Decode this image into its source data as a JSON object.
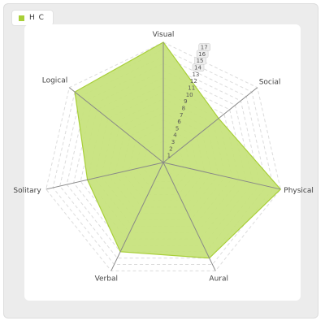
{
  "legend": {
    "series_name": "H C",
    "color": "#a8cf38"
  },
  "chart_data": {
    "type": "radar",
    "categories": [
      "Visual",
      "Social",
      "Physical",
      "Aural",
      "Verbal",
      "Solitary",
      "Logical"
    ],
    "series": [
      {
        "name": "H C",
        "values": [
          17,
          10,
          17,
          15,
          14,
          11,
          16
        ]
      }
    ],
    "rmax": 17,
    "ticks": [
      1,
      2,
      3,
      4,
      5,
      6,
      7,
      8,
      9,
      10,
      11,
      12,
      13,
      14,
      15,
      16,
      17
    ],
    "grid": true,
    "legend_position": "top-left",
    "fill_color": "#c5e27a",
    "stroke_color": "#a8cf38"
  }
}
